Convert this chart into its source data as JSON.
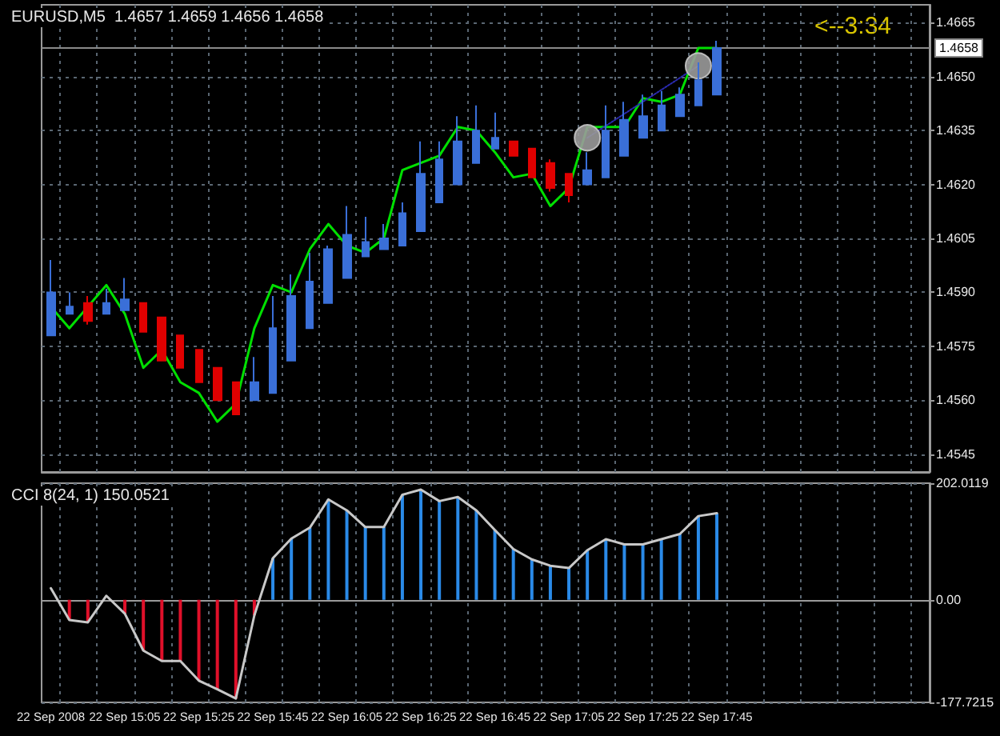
{
  "chart_data": [
    {
      "type": "candlestick",
      "title": "EURUSD,M5  1.4657 1.4659 1.4656 1.4658",
      "categories": [
        null,
        null,
        null,
        null,
        null,
        null,
        null,
        null,
        null,
        null,
        null,
        null,
        null,
        null,
        null,
        null,
        null,
        null,
        null,
        null,
        null,
        null,
        null,
        null,
        null,
        null,
        null,
        null,
        null,
        null,
        null,
        null,
        null,
        null,
        null,
        null,
        null,
        null,
        null,
        null,
        null,
        null,
        null,
        null,
        null,
        null,
        null,
        null
      ],
      "ohlc": [
        [
          1.4578,
          1.4599,
          1.4578,
          1.459
        ],
        [
          1.4584,
          1.459,
          1.4584,
          1.4586
        ],
        [
          1.4587,
          1.4589,
          1.4581,
          1.4582
        ],
        [
          1.4584,
          1.4591,
          1.4584,
          1.4587
        ],
        [
          1.4585,
          1.4594,
          1.4585,
          1.4588
        ],
        [
          1.4587,
          1.4587,
          1.4579,
          1.4579
        ],
        [
          1.4583,
          1.4583,
          1.4571,
          1.4571
        ],
        [
          1.4578,
          1.4578,
          1.4569,
          1.4569
        ],
        [
          1.4574,
          1.4574,
          1.4565,
          1.4565
        ],
        [
          1.4569,
          1.4569,
          1.456,
          1.456
        ],
        [
          1.4565,
          1.4565,
          1.4556,
          1.4556
        ],
        [
          1.456,
          1.4572,
          1.456,
          1.4565
        ],
        [
          1.4562,
          1.4589,
          1.4562,
          1.458
        ],
        [
          1.4571,
          1.4595,
          1.4571,
          1.4589
        ],
        [
          1.458,
          1.4601,
          1.458,
          1.4593
        ],
        [
          1.4587,
          1.4603,
          1.4587,
          1.4602
        ],
        [
          1.4594,
          1.4614,
          1.4594,
          1.4606
        ],
        [
          1.46,
          1.4611,
          1.46,
          1.4604
        ],
        [
          1.4602,
          1.4609,
          1.4602,
          1.4605
        ],
        [
          1.4603,
          1.4615,
          1.4603,
          1.4612
        ],
        [
          1.4607,
          1.4632,
          1.4607,
          1.4623
        ],
        [
          1.4615,
          1.4632,
          1.4615,
          1.4627
        ],
        [
          1.462,
          1.4639,
          1.462,
          1.4632
        ],
        [
          1.4626,
          1.4642,
          1.4626,
          1.4635
        ],
        [
          1.463,
          1.464,
          1.463,
          1.4633
        ],
        [
          1.4632,
          1.4632,
          1.4628,
          1.4628
        ],
        [
          1.463,
          1.463,
          1.4622,
          1.4622
        ],
        [
          1.4626,
          1.4627,
          1.4618,
          1.4619
        ],
        [
          1.4623,
          1.4623,
          1.4615,
          1.4617
        ],
        [
          1.462,
          1.4629,
          1.462,
          1.4624
        ],
        [
          1.4622,
          1.4642,
          1.4622,
          1.4635
        ],
        [
          1.4628,
          1.4643,
          1.4628,
          1.4638
        ],
        [
          1.4633,
          1.4645,
          1.4633,
          1.4639
        ],
        [
          1.4635,
          1.4646,
          1.4635,
          1.4642
        ],
        [
          1.4639,
          1.4647,
          1.4639,
          1.4645
        ],
        [
          1.4642,
          1.4654,
          1.4642,
          1.4649
        ],
        [
          1.4645,
          1.466,
          1.4645,
          1.4658
        ],
        null,
        null,
        null,
        null,
        null,
        null,
        null,
        null,
        null,
        null,
        null
      ],
      "colors": [
        "#3a6fd8",
        "#3a6fd8",
        "#e00000",
        "#3a6fd8",
        "#3a6fd8",
        "#e00000",
        "#e00000",
        "#e00000",
        "#e00000",
        "#e00000",
        "#e00000",
        "#3a6fd8",
        "#3a6fd8",
        "#3a6fd8",
        "#3a6fd8",
        "#3a6fd8",
        "#3a6fd8",
        "#3a6fd8",
        "#3a6fd8",
        "#3a6fd8",
        "#3a6fd8",
        "#3a6fd8",
        "#3a6fd8",
        "#3a6fd8",
        "#3a6fd8",
        "#e00000",
        "#e00000",
        "#e00000",
        "#e00000",
        "#3a6fd8",
        "#3a6fd8",
        "#3a6fd8",
        "#3a6fd8",
        "#3a6fd8",
        "#3a6fd8",
        "#3a6fd8",
        "#3a6fd8",
        null,
        null,
        null,
        null,
        null,
        null,
        null,
        null,
        null,
        null,
        null
      ],
      "series": [
        {
          "type": "line",
          "color": "#00e000",
          "marker": "none",
          "values": [
            1.4586,
            1.458,
            1.4586,
            1.4592,
            1.4584,
            1.4569,
            1.4574,
            1.4565,
            1.4562,
            1.4554,
            1.4559,
            1.458,
            1.4592,
            1.459,
            1.4602,
            1.4609,
            1.4603,
            1.4601,
            1.4605,
            1.4624,
            1.4626,
            1.4628,
            1.4636,
            1.4635,
            1.4629,
            1.4622,
            1.4623,
            1.4614,
            1.4619,
            1.4636,
            1.4636,
            1.4636,
            1.4644,
            1.4643,
            1.4645,
            1.4658,
            1.4658,
            null,
            null,
            null,
            null,
            null,
            null,
            null,
            null,
            null,
            null,
            null
          ]
        },
        {
          "type": "line",
          "color": "#2a2ab0",
          "marker": "none",
          "line_style": "dotted",
          "values": [
            null,
            null,
            null,
            null,
            null,
            null,
            null,
            null,
            null,
            null,
            null,
            null,
            null,
            null,
            null,
            null,
            null,
            null,
            null,
            null,
            null,
            null,
            null,
            null,
            null,
            null,
            null,
            null,
            null,
            1.4633,
            null,
            null,
            null,
            null,
            null,
            1.4653,
            null,
            null,
            null,
            null,
            null,
            null,
            null,
            null,
            null,
            null,
            null,
            null
          ]
        },
        {
          "type": "scatter",
          "color": "#9a9a9a",
          "marker": "circle",
          "values": [
            null,
            null,
            null,
            null,
            null,
            null,
            null,
            null,
            null,
            null,
            null,
            null,
            null,
            null,
            null,
            null,
            null,
            null,
            null,
            null,
            null,
            null,
            null,
            null,
            null,
            null,
            null,
            null,
            null,
            1.4633,
            null,
            null,
            null,
            null,
            null,
            1.4653,
            null,
            null,
            null,
            null,
            null,
            null,
            null,
            null,
            null,
            null,
            null,
            null
          ]
        }
      ],
      "ylim": [
        1.454,
        1.467
      ],
      "yticks": [
        {
          "value": 1.4545,
          "label": "1.4545"
        },
        {
          "value": 1.456,
          "label": "1.4560"
        },
        {
          "value": 1.4575,
          "label": "1.4575"
        },
        {
          "value": 1.459,
          "label": "1.4590"
        },
        {
          "value": 1.4605,
          "label": "1.4605"
        },
        {
          "value": 1.462,
          "label": "1.4620"
        },
        {
          "value": 1.4635,
          "label": "1.4635"
        },
        {
          "value": 1.465,
          "label": "1.4650"
        },
        {
          "value": 1.4665,
          "label": "1.4665"
        }
      ],
      "ref_lines": [
        {
          "axis": "y",
          "value": 1.4658,
          "label": "1.4658",
          "color": "#8a8a8a"
        }
      ],
      "annotations": [
        "<--3:34"
      ],
      "grid": true,
      "tick_labels": "y"
    },
    {
      "type": "bar",
      "title": "CCI 8(24, 1) 150.0521",
      "categories": [
        "22 Sep 2008",
        null,
        null,
        null,
        "22 Sep 15:05",
        null,
        null,
        null,
        "22 Sep 15:25",
        null,
        null,
        null,
        "22 Sep 15:45",
        null,
        null,
        null,
        "22 Sep 16:05",
        null,
        null,
        null,
        "22 Sep 16:25",
        null,
        null,
        null,
        "22 Sep 16:45",
        null,
        null,
        null,
        "22 Sep 17:05",
        null,
        null,
        null,
        "22 Sep 17:25",
        null,
        null,
        null,
        "22 Sep 17:45",
        null,
        null,
        null,
        null,
        null,
        null,
        null,
        null,
        null,
        null,
        null
      ],
      "series": [
        {
          "type": "bar",
          "colors": [
            null,
            "#e0102a",
            "#e0102a",
            null,
            "#e0102a",
            "#e0102a",
            "#e0102a",
            "#e0102a",
            "#e0102a",
            "#e0102a",
            "#e0102a",
            "#e0102a",
            "#2a8ae8",
            "#2a8ae8",
            "#2a8ae8",
            "#2a8ae8",
            "#2a8ae8",
            "#2a8ae8",
            "#2a8ae8",
            "#2a8ae8",
            "#2a8ae8",
            "#2a8ae8",
            "#2a8ae8",
            "#2a8ae8",
            "#2a8ae8",
            "#2a8ae8",
            "#2a8ae8",
            "#2a8ae8",
            "#2a8ae8",
            "#2a8ae8",
            "#2a8ae8",
            "#2a8ae8",
            "#2a8ae8",
            "#2a8ae8",
            "#2a8ae8",
            "#2a8ae8",
            "#2a8ae8",
            null,
            null,
            null,
            null,
            null,
            null,
            null,
            null,
            null,
            null,
            null
          ],
          "values": [
            null,
            -35,
            -39,
            null,
            -24,
            -88,
            -106,
            -106,
            -140,
            -155,
            -171,
            -27,
            72,
            106,
            125,
            174,
            155,
            126,
            126,
            182,
            191,
            171,
            178,
            155,
            121,
            88,
            70,
            59,
            55,
            86,
            105,
            96,
            96,
            105,
            114,
            145,
            150,
            null,
            null,
            null,
            null,
            null,
            null,
            null,
            null,
            null,
            null,
            null
          ]
        },
        {
          "type": "line",
          "color": "#c8c8c8",
          "marker": "none",
          "values": [
            20,
            -35,
            -39,
            7,
            -24,
            -88,
            -106,
            -106,
            -140,
            -155,
            -171,
            -27,
            72,
            106,
            125,
            174,
            155,
            126,
            126,
            182,
            191,
            171,
            178,
            155,
            121,
            88,
            70,
            59,
            55,
            86,
            105,
            96,
            96,
            105,
            114,
            145,
            150,
            null,
            null,
            null,
            null,
            null,
            null,
            null,
            null,
            null,
            null,
            null
          ]
        }
      ],
      "ylim": [
        -177.7215,
        202.0119
      ],
      "yticks": [
        -177.7215,
        {
          "value": 0,
          "label": "0.00"
        },
        202.0119
      ],
      "grid": true
    }
  ]
}
